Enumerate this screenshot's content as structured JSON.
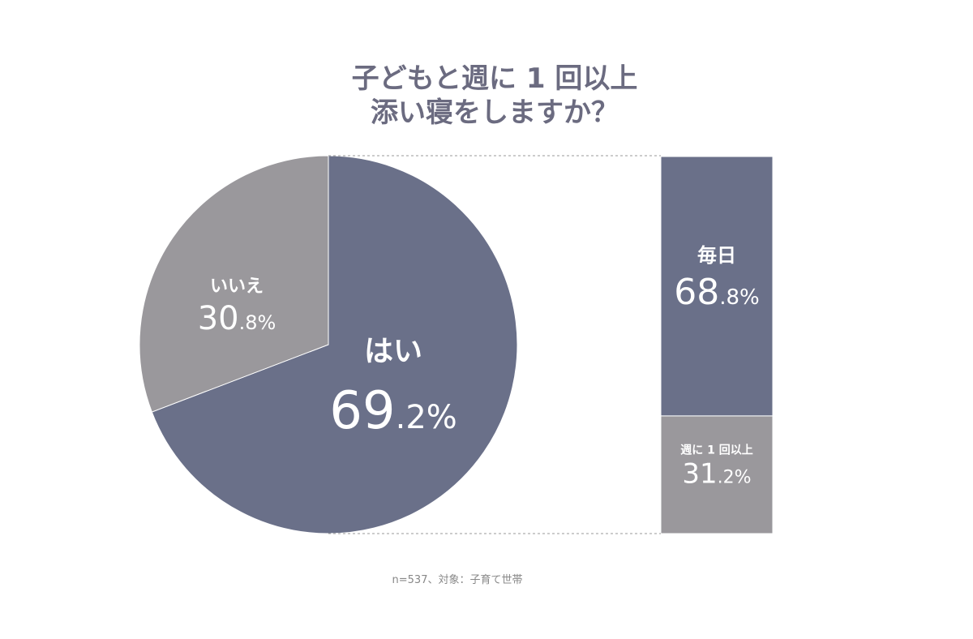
{
  "chart_data": [
    {
      "type": "pie",
      "title": [
        "子どもと週に 1 回以上",
        "添い寝をしますか？"
      ],
      "slices": [
        {
          "label": "はい",
          "value": 69.2,
          "value_label": "69.2%",
          "color": "#6a7089"
        },
        {
          "label": "いいえ",
          "value": 30.8,
          "value_label": "30.8%",
          "color": "#9a989c"
        }
      ],
      "start": "top",
      "direction": "clockwise"
    },
    {
      "type": "bar",
      "stacked": true,
      "breakdown_of": "はい",
      "segments": [
        {
          "label": "毎日",
          "value": 68.8,
          "value_label": "68.8%",
          "color": "#6a7089"
        },
        {
          "label": "週に 1 回以上",
          "value": 31.2,
          "value_label": "31.2%",
          "color": "#9a989c"
        }
      ]
    }
  ],
  "footnote": "n=537、対象：子育て世帯"
}
